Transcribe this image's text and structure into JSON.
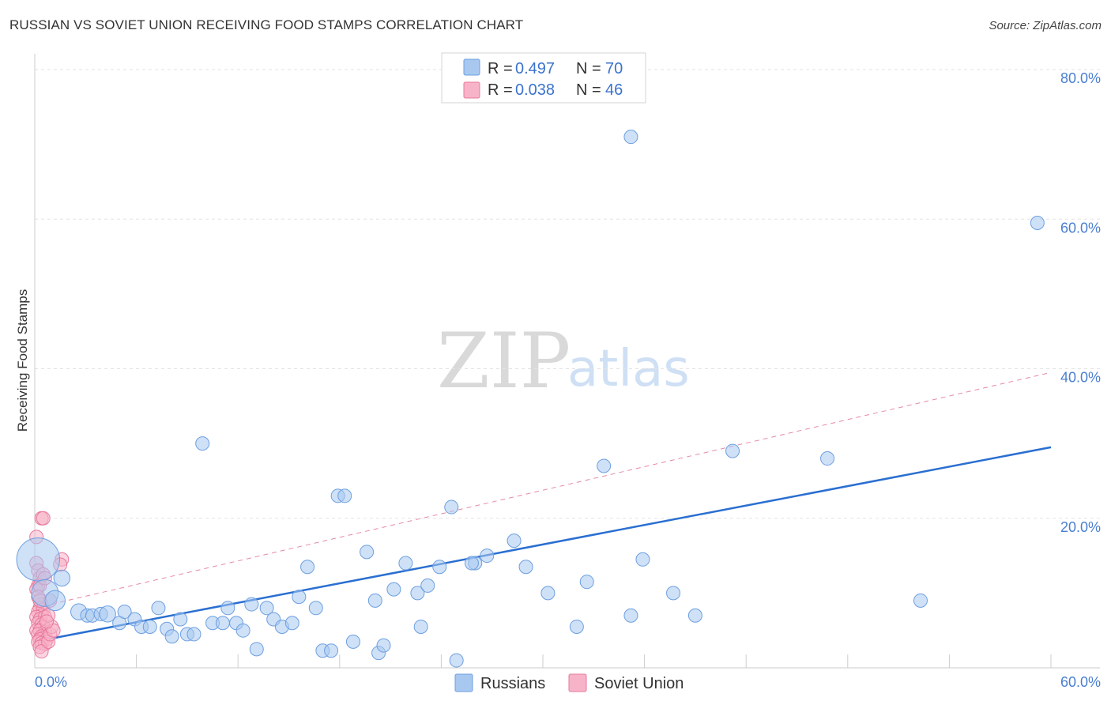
{
  "header": {
    "title": "RUSSIAN VS SOVIET UNION RECEIVING FOOD STAMPS CORRELATION CHART",
    "source": "Source: ZipAtlas.com"
  },
  "watermark": {
    "zip": "ZIP",
    "atlas": "atlas"
  },
  "legend": {
    "series": [
      {
        "r_label": "R = ",
        "r_value": "0.497",
        "n_label": "N = ",
        "n_value": "70"
      },
      {
        "r_label": "R = ",
        "r_value": "0.038",
        "n_label": "N = ",
        "n_value": "46"
      }
    ]
  },
  "colors": {
    "russians_fill": "#a8c8f0",
    "russians_stroke": "#6d9fe0",
    "russians_line": "#2a6fd1",
    "soviet_fill": "#f7b3c8",
    "soviet_stroke": "#e8799c",
    "soviet_line": "#e58aa6",
    "grid": "#e3e3e3",
    "axis_text": "#4a7fd1"
  },
  "chart_data": {
    "type": "scatter",
    "title": "RUSSIAN VS SOVIET UNION RECEIVING FOOD STAMPS CORRELATION CHART",
    "xlabel": "",
    "ylabel": "Receiving Food Stamps",
    "xlim": [
      0,
      60
    ],
    "ylim": [
      0,
      80
    ],
    "x_ticks": [
      "0.0%",
      "60.0%"
    ],
    "y_ticks": [
      {
        "value": 20,
        "label": "20.0%"
      },
      {
        "value": 40,
        "label": "40.0%"
      },
      {
        "value": 60,
        "label": "60.0%"
      },
      {
        "value": 80,
        "label": "80.0%"
      }
    ],
    "legend_position": "top-center",
    "series": [
      {
        "name": "Russians",
        "r": 0.497,
        "n": 70,
        "trend": {
          "x": [
            0,
            60
          ],
          "y": [
            3.5,
            29.5
          ],
          "style": "solid"
        },
        "points": [
          [
            0.2,
            14.5,
            3.2
          ],
          [
            0.6,
            10.0,
            2.0
          ],
          [
            1.2,
            9.0,
            1.5
          ],
          [
            1.6,
            12.0,
            1.2
          ],
          [
            2.6,
            7.5,
            1.2
          ],
          [
            3.1,
            7.0,
            1.0
          ],
          [
            3.4,
            7.0,
            1.0
          ],
          [
            3.9,
            7.2,
            1.0
          ],
          [
            4.3,
            7.2,
            1.2
          ],
          [
            5.0,
            6.0,
            1.0
          ],
          [
            5.3,
            7.5,
            1.0
          ],
          [
            5.9,
            6.5,
            1.0
          ],
          [
            6.3,
            5.5,
            1.0
          ],
          [
            6.8,
            5.5,
            1.0
          ],
          [
            7.3,
            8.0,
            1.0
          ],
          [
            7.8,
            5.2,
            1.0
          ],
          [
            8.1,
            4.2,
            1.0
          ],
          [
            8.6,
            6.5,
            1.0
          ],
          [
            9.0,
            4.5,
            1.0
          ],
          [
            9.4,
            4.5,
            1.0
          ],
          [
            9.9,
            30.0,
            1.0
          ],
          [
            10.5,
            6.0,
            1.0
          ],
          [
            11.1,
            6.0,
            1.0
          ],
          [
            11.4,
            8.0,
            1.0
          ],
          [
            11.9,
            6.0,
            1.0
          ],
          [
            12.3,
            5.0,
            1.0
          ],
          [
            12.8,
            8.5,
            1.0
          ],
          [
            13.1,
            2.5,
            1.0
          ],
          [
            13.7,
            8.0,
            1.0
          ],
          [
            14.1,
            6.5,
            1.0
          ],
          [
            14.6,
            5.5,
            1.0
          ],
          [
            15.2,
            6.0,
            1.0
          ],
          [
            15.6,
            9.5,
            1.0
          ],
          [
            16.1,
            13.5,
            1.0
          ],
          [
            16.6,
            8.0,
            1.0
          ],
          [
            17.0,
            2.3,
            1.0
          ],
          [
            17.5,
            2.3,
            1.0
          ],
          [
            17.9,
            23.0,
            1.0
          ],
          [
            18.3,
            23.0,
            1.0
          ],
          [
            18.8,
            3.5,
            1.0
          ],
          [
            19.6,
            15.5,
            1.0
          ],
          [
            20.1,
            9.0,
            1.0
          ],
          [
            20.3,
            2.0,
            1.0
          ],
          [
            20.6,
            3.0,
            1.0
          ],
          [
            21.2,
            10.5,
            1.0
          ],
          [
            21.9,
            14.0,
            1.0
          ],
          [
            22.6,
            10.0,
            1.0
          ],
          [
            22.8,
            5.5,
            1.0
          ],
          [
            23.2,
            11.0,
            1.0
          ],
          [
            23.9,
            13.5,
            1.0
          ],
          [
            24.6,
            21.5,
            1.0
          ],
          [
            24.9,
            1.0,
            1.0
          ],
          [
            26.0,
            14.0,
            1.0
          ],
          [
            26.7,
            15.0,
            1.0
          ],
          [
            28.3,
            17.0,
            1.0
          ],
          [
            29.0,
            13.5,
            1.0
          ],
          [
            30.3,
            10.0,
            1.0
          ],
          [
            32.0,
            5.5,
            1.0
          ],
          [
            32.6,
            11.5,
            1.0
          ],
          [
            33.6,
            27.0,
            1.0
          ],
          [
            35.2,
            7.0,
            1.0
          ],
          [
            35.2,
            71.0,
            1.0
          ],
          [
            35.9,
            14.5,
            1.0
          ],
          [
            37.7,
            10.0,
            1.0
          ],
          [
            39.0,
            7.0,
            1.0
          ],
          [
            41.2,
            29.0,
            1.0
          ],
          [
            46.8,
            28.0,
            1.0
          ],
          [
            52.3,
            9.0,
            1.0
          ],
          [
            59.2,
            59.5,
            1.0
          ],
          [
            25.8,
            14.0,
            1.0
          ]
        ]
      },
      {
        "name": "Soviet Union",
        "r": 0.038,
        "n": 46,
        "trend": {
          "x": [
            0,
            60
          ],
          "y": [
            8.0,
            39.5
          ],
          "style": "dashed"
        },
        "points": [
          [
            0.1,
            17.5,
            1.0
          ],
          [
            0.4,
            20.0,
            1.0
          ],
          [
            0.5,
            20.0,
            1.0
          ],
          [
            0.1,
            14.0,
            1.0
          ],
          [
            0.2,
            13.0,
            1.0
          ],
          [
            0.3,
            12.0,
            1.0
          ],
          [
            0.5,
            12.5,
            1.0
          ],
          [
            0.2,
            11.0,
            1.0
          ],
          [
            0.1,
            10.5,
            1.0
          ],
          [
            0.3,
            11.0,
            1.0
          ],
          [
            0.6,
            12.0,
            1.0
          ],
          [
            0.2,
            9.5,
            1.0
          ],
          [
            0.4,
            8.5,
            1.0
          ],
          [
            0.3,
            8.0,
            1.0
          ],
          [
            0.2,
            7.5,
            1.0
          ],
          [
            0.5,
            7.8,
            1.0
          ],
          [
            0.4,
            7.0,
            1.0
          ],
          [
            0.1,
            6.8,
            1.0
          ],
          [
            0.3,
            6.5,
            1.0
          ],
          [
            0.6,
            6.8,
            1.0
          ],
          [
            0.2,
            6.0,
            1.0
          ],
          [
            0.4,
            5.8,
            1.0
          ],
          [
            0.5,
            5.5,
            1.0
          ],
          [
            0.1,
            5.0,
            1.0
          ],
          [
            0.3,
            5.0,
            1.0
          ],
          [
            0.6,
            4.8,
            1.0
          ],
          [
            0.2,
            4.5,
            1.0
          ],
          [
            0.4,
            4.2,
            1.0
          ],
          [
            0.5,
            4.0,
            1.0
          ],
          [
            0.3,
            3.8,
            1.0
          ],
          [
            0.7,
            3.8,
            1.0
          ],
          [
            0.2,
            3.5,
            1.0
          ],
          [
            0.4,
            3.3,
            1.0
          ],
          [
            0.6,
            3.2,
            1.0
          ],
          [
            0.3,
            2.8,
            1.0
          ],
          [
            0.4,
            2.2,
            1.0
          ],
          [
            0.8,
            3.5,
            1.0
          ],
          [
            0.9,
            4.5,
            1.0
          ],
          [
            1.0,
            5.5,
            1.0
          ],
          [
            1.1,
            5.0,
            1.0
          ],
          [
            1.6,
            14.5,
            1.0
          ],
          [
            1.5,
            13.8,
            1.0
          ],
          [
            0.8,
            7.0,
            1.0
          ],
          [
            0.7,
            6.2,
            1.0
          ],
          [
            0.9,
            9.0,
            1.0
          ],
          [
            0.3,
            9.0,
            1.0
          ]
        ]
      }
    ]
  },
  "bottom_legend": [
    "Russians",
    "Soviet Union"
  ]
}
